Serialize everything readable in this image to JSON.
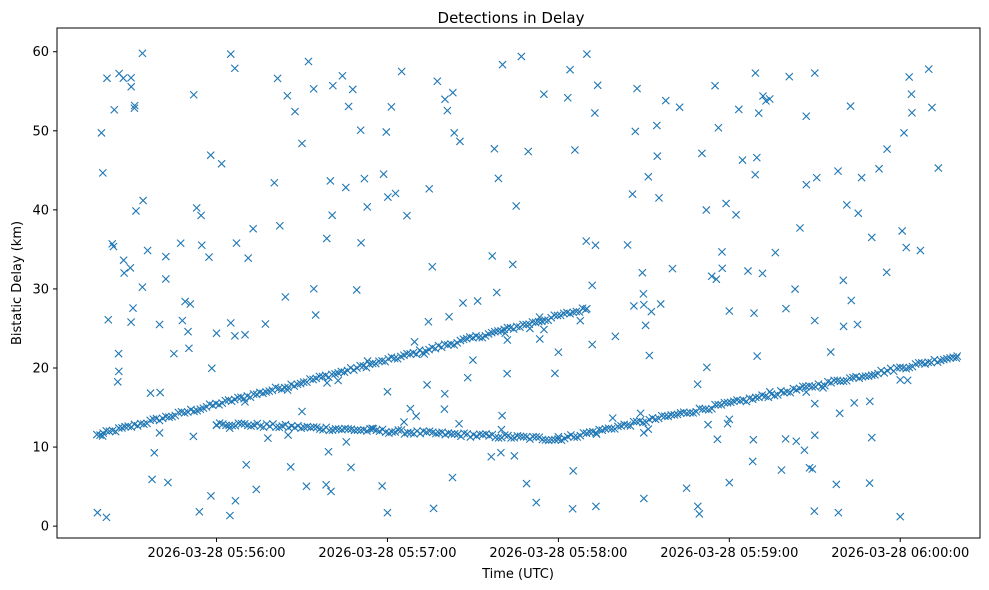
{
  "chart_data": {
    "type": "scatter",
    "title": "Detections in Delay",
    "xlabel": "Time (UTC)",
    "ylabel": "Bistatic Delay (km)",
    "marker": "x",
    "color": "#1f77b4",
    "grid": false,
    "legend": "none",
    "xlim": [
      "2026-03-28 05:55:04",
      "2026-03-28 06:00:28"
    ],
    "ylim": [
      -1.5,
      63
    ],
    "x_ticks": [
      "2026-03-28 05:56:00",
      "2026-03-28 05:57:00",
      "2026-03-28 05:58:00",
      "2026-03-28 05:59:00",
      "2026-03-28 06:00:00"
    ],
    "y_ticks": [
      0,
      10,
      20,
      30,
      40,
      50,
      60
    ],
    "tracks": [
      {
        "from": "2026-03-28 05:55:18",
        "to": "2026-03-28 05:58:10",
        "delay_from": 11.5,
        "delay_to": 27.5,
        "note": "rising track A"
      },
      {
        "from": "2026-03-28 05:56:00",
        "to": "2026-03-28 05:58:00",
        "delay_from": 13.0,
        "delay_to": 11.0,
        "note": "descending track"
      },
      {
        "from": "2026-03-28 05:58:00",
        "to": "2026-03-28 06:00:20",
        "delay_from": 11.0,
        "delay_to": 21.5,
        "note": "rising track B"
      }
    ],
    "points": [
      {
        "x": "2026-03-28 05:55:22",
        "y": 26.1
      },
      {
        "x": "2026-03-28 05:55:30",
        "y": 25.8
      },
      {
        "x": "2026-03-28 05:55:40",
        "y": 25.5
      },
      {
        "x": "2026-03-28 05:55:50",
        "y": 24.6
      },
      {
        "x": "2026-03-28 05:56:00",
        "y": 24.4
      },
      {
        "x": "2026-03-28 05:56:10",
        "y": 24.2
      },
      {
        "x": "2026-03-28 05:55:48",
        "y": 26.0
      },
      {
        "x": "2026-03-28 05:56:05",
        "y": 25.7
      },
      {
        "x": "2026-03-28 05:55:20",
        "y": 11.4
      },
      {
        "x": "2026-03-28 05:55:40",
        "y": 11.8
      },
      {
        "x": "2026-03-28 05:56:00",
        "y": 12.8
      },
      {
        "x": "2026-03-28 05:56:30",
        "y": 14.5
      },
      {
        "x": "2026-03-28 05:57:00",
        "y": 17.0
      },
      {
        "x": "2026-03-28 05:57:30",
        "y": 21.0
      },
      {
        "x": "2026-03-28 05:57:50",
        "y": 25.0
      },
      {
        "x": "2026-03-28 05:58:10",
        "y": 27.5
      },
      {
        "x": "2026-03-28 05:57:20",
        "y": 14.8
      },
      {
        "x": "2026-03-28 05:57:40",
        "y": 12.2
      },
      {
        "x": "2026-03-28 05:58:00",
        "y": 11.3
      },
      {
        "x": "2026-03-28 05:58:30",
        "y": 11.8
      },
      {
        "x": "2026-03-28 05:59:00",
        "y": 13.5
      },
      {
        "x": "2026-03-28 05:59:30",
        "y": 15.5
      },
      {
        "x": "2026-03-28 06:00:00",
        "y": 18.5
      },
      {
        "x": "2026-03-28 06:00:20",
        "y": 21.5
      },
      {
        "x": "2026-03-28 05:58:00",
        "y": 22.0
      },
      {
        "x": "2026-03-28 05:58:20",
        "y": 24.0
      },
      {
        "x": "2026-03-28 05:58:30",
        "y": 28.0
      },
      {
        "x": "2026-03-28 05:59:00",
        "y": 27.2
      },
      {
        "x": "2026-03-28 05:59:30",
        "y": 26.0
      },
      {
        "x": "2026-03-28 05:59:45",
        "y": 25.5
      },
      {
        "x": "2026-03-28 05:59:30",
        "y": 11.5
      },
      {
        "x": "2026-03-28 05:59:50",
        "y": 11.2
      },
      {
        "x": "2026-03-28 05:58:05",
        "y": 2.2
      },
      {
        "x": "2026-03-28 05:58:30",
        "y": 3.5
      },
      {
        "x": "2026-03-28 05:58:45",
        "y": 4.8
      },
      {
        "x": "2026-03-28 05:59:00",
        "y": 5.5
      },
      {
        "x": "2026-03-28 05:55:30",
        "y": 56.7
      },
      {
        "x": "2026-03-28 05:55:34",
        "y": 59.8
      },
      {
        "x": "2026-03-28 05:56:05",
        "y": 59.7
      },
      {
        "x": "2026-03-28 05:57:47",
        "y": 59.4
      },
      {
        "x": "2026-03-28 05:58:10",
        "y": 59.7
      },
      {
        "x": "2026-03-28 06:00:10",
        "y": 57.8
      },
      {
        "x": "2026-03-28 05:57:05",
        "y": 57.5
      },
      {
        "x": "2026-03-28 05:59:30",
        "y": 57.3
      },
      {
        "x": "2026-03-28 05:56:30",
        "y": 48.4
      },
      {
        "x": "2026-03-28 05:58:55",
        "y": 55.7
      },
      {
        "x": "2026-03-28 05:57:00",
        "y": 1.7
      },
      {
        "x": "2026-03-28 06:00:00",
        "y": 1.2
      }
    ]
  }
}
